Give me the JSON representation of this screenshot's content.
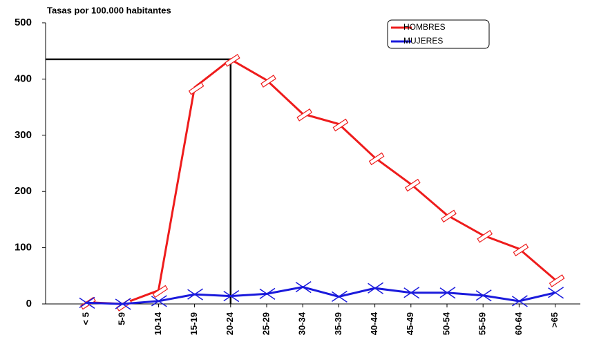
{
  "chart_data": {
    "type": "line",
    "title": "Tasas por 100.000 habitantes",
    "categories": [
      "< 5",
      "5-9",
      "10-14",
      "15-19",
      "20-24",
      "25-29",
      "30-34",
      "35-39",
      "40-44",
      "45-49",
      "50-54",
      "55-59",
      "60-64",
      ">65"
    ],
    "series": [
      {
        "name": "HOMBRES",
        "color": "#ee1c1c",
        "values": [
          3,
          0,
          24,
          385,
          435,
          398,
          338,
          320,
          260,
          213,
          158,
          122,
          98,
          43
        ]
      },
      {
        "name": "MUJERES",
        "color": "#1a1adc",
        "values": [
          2,
          0,
          5,
          17,
          14,
          18,
          30,
          13,
          28,
          20,
          20,
          15,
          5,
          20
        ]
      }
    ],
    "ylim": [
      0,
      500
    ],
    "yticks": [
      0,
      100,
      200,
      300,
      400,
      500
    ],
    "grid": false,
    "legend": "upper right"
  }
}
